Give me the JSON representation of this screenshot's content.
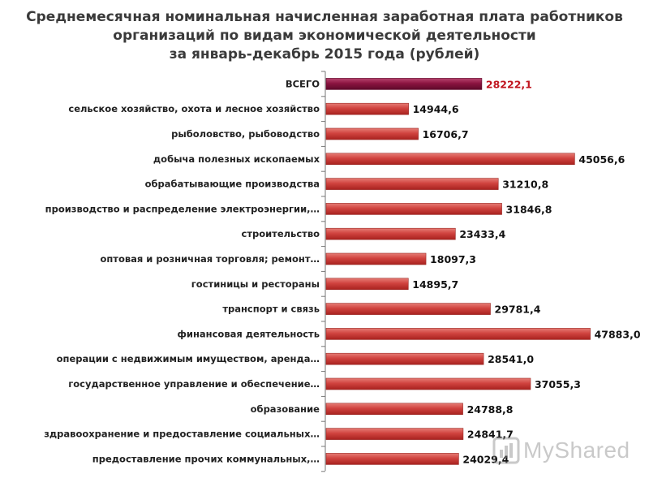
{
  "title_lines": [
    "Среднемесячная номинальная начисленная заработная плата работников",
    "организаций по видам экономической деятельности",
    "за январь-декабрь 2015 года (рублей)"
  ],
  "watermark": "MyShared",
  "colors": {
    "bar": "#c8413d",
    "bar_highlight": "#8b1440",
    "highlight_value_text": "#c0141e",
    "title": "#3a3a3a"
  },
  "chart_data": {
    "type": "bar",
    "orientation": "horizontal",
    "title": "Среднемесячная номинальная начисленная заработная плата работников организаций по видам экономической деятельности за январь-декабрь 2015 года (рублей)",
    "xlim": [
      0,
      50000
    ],
    "grid": false,
    "categories": [
      "ВСЕГО",
      "сельское хозяйство, охота и лесное хозяйство",
      "рыболовство, рыбоводство",
      "добыча полезных ископаемых",
      "обрабатывающие производства",
      "производство и распределение электроэнергии,…",
      "строительство",
      "оптовая и розничная торговля; ремонт…",
      "гостиницы и рестораны",
      "транспорт и связь",
      "финансовая деятельность",
      "операции с недвижимым имуществом, аренда…",
      "государственное управление и обеспечение…",
      "образование",
      "здравоохранение и предоставление социальных…",
      "предоставление прочих коммунальных,…"
    ],
    "values": [
      28222.1,
      14944.6,
      16706.7,
      45056.6,
      31210.8,
      31846.8,
      23433.4,
      18097.3,
      14895.7,
      29781.4,
      47883.0,
      28541.0,
      37055.3,
      24788.8,
      24841.7,
      24029.4
    ],
    "value_labels": [
      "28222,1",
      "14944,6",
      "16706,7",
      "45056,6",
      "31210,8",
      "31846,8",
      "23433,4",
      "18097,3",
      "14895,7",
      "29781,4",
      "47883,0",
      "28541,0",
      "37055,3",
      "24788,8",
      "24841,7",
      "24029,4"
    ],
    "highlight_index": 0
  }
}
